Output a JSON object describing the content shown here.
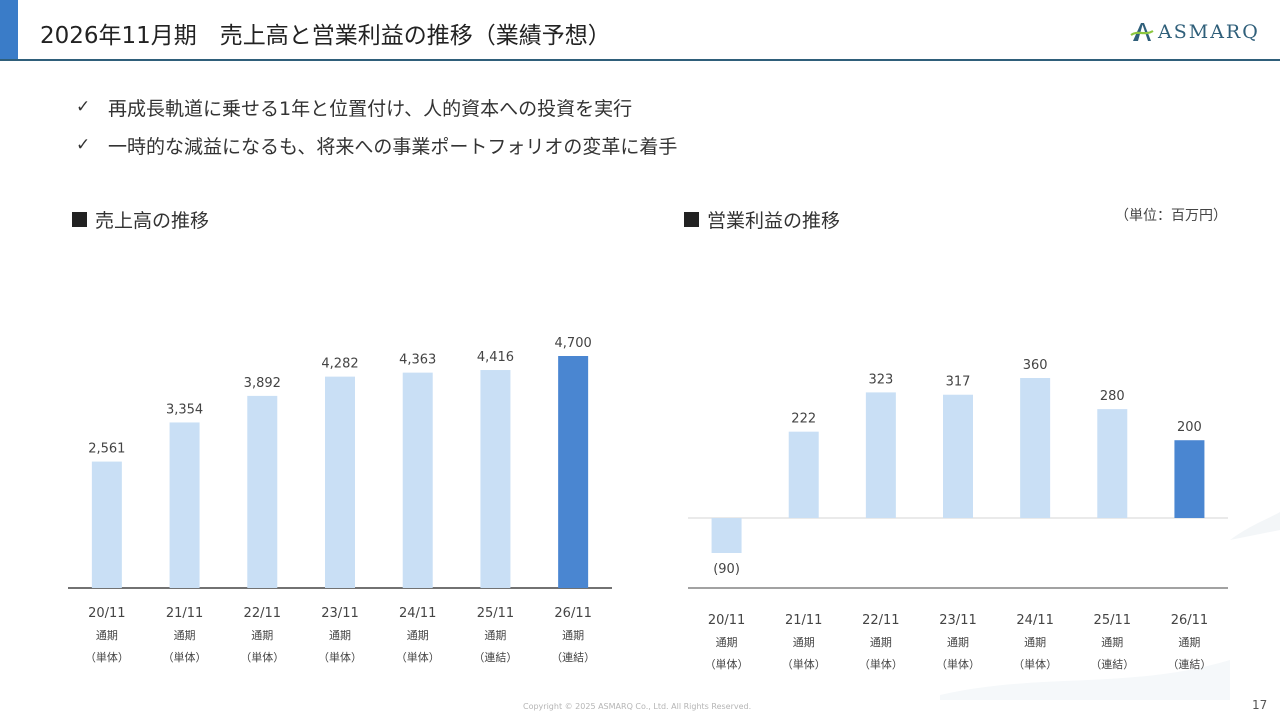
{
  "header": {
    "title": "2026年11月期　売上高と営業利益の推移（業績予想）",
    "logo_text": "ASMARQ",
    "accent_color": "#3a7cc8",
    "rule_color": "#2f5f7a"
  },
  "bullets": [
    {
      "icon": "check-icon",
      "text": "再成長軌道に乗せる1年と位置付け、人的資本への投資を実行"
    },
    {
      "icon": "check-icon",
      "text": "一時的な減益になるも、将来への事業ポートフォリオの変革に着手"
    }
  ],
  "sections": {
    "sales_title": "売上高の推移",
    "profit_title": "営業利益の推移",
    "unit": "（単位：百万円）"
  },
  "chart_data": [
    {
      "type": "bar",
      "title": "売上高の推移",
      "unit": "百万円",
      "categories": [
        {
          "period": "20/11",
          "term": "通期",
          "basis": "（単体）"
        },
        {
          "period": "21/11",
          "term": "通期",
          "basis": "（単体）"
        },
        {
          "period": "22/11",
          "term": "通期",
          "basis": "（単体）"
        },
        {
          "period": "23/11",
          "term": "通期",
          "basis": "（単体）"
        },
        {
          "period": "24/11",
          "term": "通期",
          "basis": "（単体）"
        },
        {
          "period": "25/11",
          "term": "通期",
          "basis": "（連結）"
        },
        {
          "period": "26/11",
          "term": "通期",
          "basis": "（連結）"
        }
      ],
      "values": [
        2561,
        3354,
        3892,
        4282,
        4363,
        4416,
        4700
      ],
      "labels": [
        "2,561",
        "3,354",
        "3,892",
        "4,282",
        "4,363",
        "4,416",
        "4,700"
      ],
      "highlight_index": 6,
      "ylim": [
        0,
        4850
      ],
      "colors": {
        "bar": "#c9dff5",
        "highlight": "#4a86d1",
        "negative_label": "#e05050"
      }
    },
    {
      "type": "bar",
      "title": "営業利益の推移",
      "unit": "百万円",
      "categories": [
        {
          "period": "20/11",
          "term": "通期",
          "basis": "（単体）"
        },
        {
          "period": "21/11",
          "term": "通期",
          "basis": "（単体）"
        },
        {
          "period": "22/11",
          "term": "通期",
          "basis": "（単体）"
        },
        {
          "period": "23/11",
          "term": "通期",
          "basis": "（単体）"
        },
        {
          "period": "24/11",
          "term": "通期",
          "basis": "（単体）"
        },
        {
          "period": "25/11",
          "term": "通期",
          "basis": "（連結）"
        },
        {
          "period": "26/11",
          "term": "通期",
          "basis": "（連結）"
        }
      ],
      "values": [
        -90,
        222,
        323,
        317,
        360,
        280,
        200
      ],
      "labels": [
        "(90)",
        "222",
        "323",
        "317",
        "360",
        "280",
        "200"
      ],
      "highlight_index": 6,
      "ylim": [
        -100,
        400
      ],
      "colors": {
        "bar": "#c9dff5",
        "highlight": "#4a86d1",
        "negative_label": "#e05050"
      }
    }
  ],
  "footer": {
    "copyright": "Copyright © 2025 ASMARQ Co., Ltd. All Rights Reserved.",
    "page_number": "17"
  }
}
